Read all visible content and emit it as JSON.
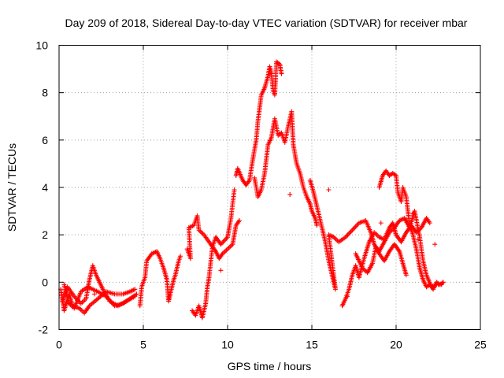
{
  "chart_data": {
    "type": "scatter",
    "title": "Day 209 of 2018, Sidereal Day-to-day VTEC variation (SDTVAR) for receiver mbar",
    "xlabel": "GPS time / hours",
    "ylabel": "SDTVAR / TECUs",
    "xlim": [
      0,
      25
    ],
    "ylim": [
      -2,
      10
    ],
    "xticks": [
      0,
      5,
      10,
      15,
      20,
      25
    ],
    "yticks": [
      -2,
      0,
      2,
      4,
      6,
      8,
      10
    ],
    "grid": true,
    "marker": "+",
    "color": "#ff0000",
    "series": [
      {
        "name": "SDTVAR",
        "tracks": [
          [
            [
              0.1,
              -0.3
            ],
            [
              0.3,
              -1.2
            ],
            [
              0.6,
              -0.5
            ],
            [
              0.8,
              -1.0
            ],
            [
              1.2,
              -1.1
            ],
            [
              1.5,
              -1.3
            ],
            [
              1.8,
              -1.0
            ],
            [
              2.3,
              -0.7
            ],
            [
              2.8,
              -0.4
            ],
            [
              3.3,
              -0.5
            ],
            [
              3.8,
              -0.5
            ],
            [
              4.2,
              -0.4
            ],
            [
              4.5,
              -0.3
            ]
          ],
          [
            [
              0.2,
              -0.8
            ],
            [
              0.5,
              -0.2
            ],
            [
              0.9,
              -0.6
            ],
            [
              1.3,
              -0.9
            ],
            [
              1.6,
              -0.7
            ],
            [
              1.8,
              0.1
            ],
            [
              2.0,
              0.7
            ],
            [
              2.2,
              0.3
            ],
            [
              2.6,
              -0.3
            ],
            [
              3.0,
              -0.8
            ],
            [
              3.5,
              -1.0
            ],
            [
              4.0,
              -0.8
            ],
            [
              4.5,
              -0.6
            ]
          ],
          [
            [
              0.3,
              -0.1
            ],
            [
              0.6,
              -0.9
            ],
            [
              0.9,
              -1.1
            ],
            [
              1.3,
              -0.4
            ],
            [
              1.7,
              -0.2
            ],
            [
              2.3,
              -0.4
            ],
            [
              2.8,
              -0.6
            ],
            [
              3.3,
              -1.0
            ],
            [
              3.8,
              -0.9
            ],
            [
              4.2,
              -0.7
            ],
            [
              4.6,
              -0.5
            ]
          ],
          [
            [
              4.8,
              -1.0
            ],
            [
              4.9,
              -0.2
            ],
            [
              5.1,
              0.2
            ],
            [
              5.2,
              0.9
            ],
            [
              5.5,
              1.2
            ],
            [
              5.8,
              1.3
            ],
            [
              6.0,
              1.0
            ],
            [
              6.2,
              0.6
            ],
            [
              6.4,
              0.1
            ],
            [
              6.5,
              -0.8
            ],
            [
              6.6,
              -0.5
            ],
            [
              6.8,
              0.1
            ],
            [
              6.9,
              0.3
            ],
            [
              7.1,
              0.9
            ],
            [
              7.2,
              1.1
            ]
          ],
          [
            [
              7.6,
              1.4
            ],
            [
              7.8,
              1.0
            ],
            [
              7.7,
              2.3
            ],
            [
              8.0,
              2.4
            ],
            [
              8.2,
              2.8
            ],
            [
              8.3,
              2.2
            ],
            [
              8.6,
              2.0
            ],
            [
              9.0,
              1.6
            ],
            [
              9.3,
              1.3
            ],
            [
              9.5,
              1.0
            ],
            [
              9.7,
              1.2
            ],
            [
              10.0,
              1.4
            ],
            [
              10.3,
              1.6
            ],
            [
              10.5,
              2.4
            ],
            [
              10.7,
              2.6
            ]
          ],
          [
            [
              7.9,
              -1.2
            ],
            [
              8.1,
              -1.4
            ],
            [
              8.3,
              -1.0
            ],
            [
              8.5,
              -1.5
            ],
            [
              8.7,
              -0.9
            ],
            [
              8.8,
              -0.2
            ],
            [
              8.9,
              0.2
            ],
            [
              9.1,
              1.5
            ],
            [
              9.3,
              1.9
            ],
            [
              9.6,
              1.6
            ],
            [
              10.0,
              1.9
            ],
            [
              10.2,
              2.7
            ],
            [
              10.4,
              3.9
            ]
          ],
          [
            [
              10.5,
              4.5
            ],
            [
              10.6,
              4.8
            ],
            [
              10.9,
              4.3
            ],
            [
              11.1,
              4.1
            ],
            [
              11.3,
              4.3
            ],
            [
              11.5,
              5.2
            ],
            [
              11.7,
              6.0
            ],
            [
              11.8,
              6.8
            ],
            [
              12.0,
              7.9
            ],
            [
              12.2,
              8.2
            ],
            [
              12.4,
              8.7
            ],
            [
              12.5,
              9.1
            ],
            [
              12.6,
              8.8
            ],
            [
              12.7,
              8.1
            ],
            [
              12.8,
              7.9
            ],
            [
              12.9,
              9.3
            ],
            [
              13.1,
              9.2
            ],
            [
              13.2,
              8.8
            ]
          ],
          [
            [
              11.6,
              4.4
            ],
            [
              11.8,
              3.6
            ],
            [
              12.0,
              3.9
            ],
            [
              12.2,
              4.6
            ],
            [
              12.4,
              5.8
            ],
            [
              12.6,
              6.1
            ],
            [
              12.8,
              6.9
            ],
            [
              13.0,
              6.2
            ],
            [
              13.2,
              6.3
            ],
            [
              13.4,
              5.9
            ],
            [
              13.6,
              6.6
            ],
            [
              13.8,
              7.2
            ],
            [
              13.9,
              5.8
            ],
            [
              14.1,
              5.0
            ],
            [
              14.3,
              4.6
            ],
            [
              14.5,
              4.0
            ],
            [
              14.7,
              3.6
            ],
            [
              14.9,
              3.3
            ],
            [
              15.0,
              3.0
            ],
            [
              15.2,
              2.7
            ],
            [
              15.3,
              2.4
            ]
          ],
          [
            [
              14.9,
              4.3
            ],
            [
              15.1,
              3.8
            ],
            [
              15.3,
              3.2
            ],
            [
              15.6,
              2.3
            ],
            [
              15.8,
              1.7
            ],
            [
              16.0,
              0.9
            ],
            [
              16.2,
              0.3
            ],
            [
              16.4,
              -0.3
            ],
            [
              16.0,
              2.0
            ],
            [
              16.3,
              1.9
            ],
            [
              16.6,
              1.7
            ],
            [
              17.0,
              1.9
            ],
            [
              17.4,
              2.2
            ],
            [
              17.8,
              2.5
            ],
            [
              18.2,
              2.6
            ],
            [
              18.5,
              2.1
            ],
            [
              18.7,
              1.6
            ],
            [
              19.0,
              1.2
            ],
            [
              19.3,
              0.9
            ],
            [
              19.6,
              1.3
            ],
            [
              19.9,
              1.6
            ],
            [
              20.2,
              1.3
            ],
            [
              20.4,
              0.8
            ],
            [
              20.6,
              0.3
            ]
          ],
          [
            [
              16.8,
              -1.0
            ],
            [
              17.0,
              -0.7
            ],
            [
              17.2,
              -0.3
            ],
            [
              17.4,
              0.3
            ],
            [
              17.6,
              0.7
            ],
            [
              17.8,
              0.2
            ],
            [
              18.1,
              1.0
            ],
            [
              18.4,
              1.7
            ],
            [
              18.7,
              2.1
            ],
            [
              19.0,
              1.9
            ],
            [
              19.3,
              1.8
            ],
            [
              19.6,
              2.3
            ],
            [
              19.8,
              2.5
            ],
            [
              20.0,
              2.0
            ],
            [
              20.3,
              1.7
            ],
            [
              20.6,
              2.1
            ],
            [
              20.9,
              2.4
            ],
            [
              21.2,
              2.1
            ],
            [
              21.5,
              2.3
            ],
            [
              21.8,
              2.7
            ],
            [
              22.0,
              2.5
            ]
          ],
          [
            [
              19.0,
              4.0
            ],
            [
              19.2,
              4.5
            ],
            [
              19.4,
              4.7
            ],
            [
              19.6,
              4.5
            ],
            [
              19.8,
              4.6
            ],
            [
              20.0,
              4.5
            ],
            [
              20.1,
              3.8
            ],
            [
              20.3,
              3.4
            ],
            [
              20.4,
              4.0
            ],
            [
              20.6,
              3.6
            ],
            [
              20.8,
              2.4
            ],
            [
              21.0,
              2.0
            ],
            [
              21.2,
              1.4
            ],
            [
              21.4,
              0.6
            ],
            [
              21.6,
              0.1
            ],
            [
              21.8,
              -0.2
            ],
            [
              22.0,
              -0.1
            ],
            [
              22.2,
              -0.3
            ],
            [
              22.4,
              0.0
            ],
            [
              22.6,
              -0.1
            ],
            [
              22.8,
              0.0
            ]
          ],
          [
            [
              17.6,
              1.2
            ],
            [
              18.0,
              0.6
            ],
            [
              18.3,
              0.4
            ],
            [
              18.6,
              0.8
            ],
            [
              18.8,
              1.5
            ],
            [
              19.0,
              1.3
            ],
            [
              19.3,
              1.7
            ],
            [
              19.6,
              2.1
            ],
            [
              19.9,
              2.3
            ],
            [
              20.2,
              2.6
            ],
            [
              20.5,
              2.7
            ],
            [
              20.8,
              2.3
            ],
            [
              21.1,
              3.0
            ],
            [
              21.4,
              1.9
            ],
            [
              21.6,
              0.9
            ],
            [
              21.8,
              0.3
            ],
            [
              22.1,
              -0.2
            ],
            [
              22.4,
              -0.1
            ],
            [
              22.7,
              -0.1
            ]
          ]
        ],
        "outliers": [
          [
            2.1,
            -0.5
          ],
          [
            13.7,
            3.7
          ],
          [
            16.0,
            3.9
          ],
          [
            21.0,
            2.9
          ],
          [
            21.3,
            1.8
          ],
          [
            22.3,
            1.6
          ],
          [
            19.1,
            2.5
          ],
          [
            17.1,
            -0.6
          ],
          [
            9.6,
            0.5
          ]
        ]
      }
    ]
  }
}
